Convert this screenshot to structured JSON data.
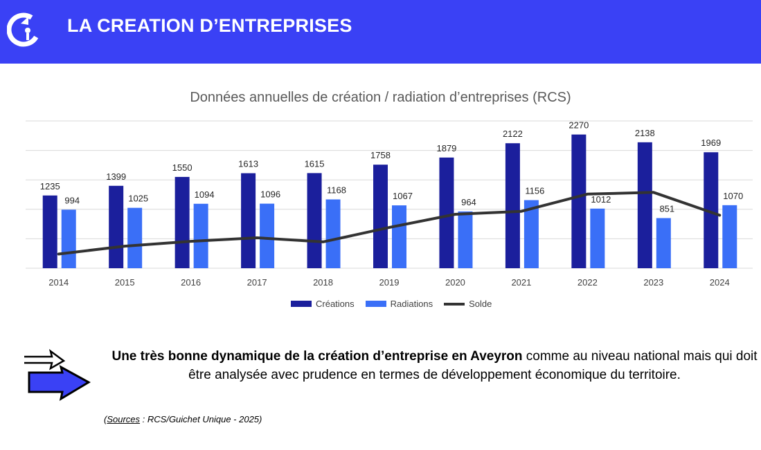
{
  "header": {
    "title": "LA CREATION D’ENTREPRISES",
    "logo_icon": "cci-logo-icon"
  },
  "colors": {
    "header_bg": "#3a41f5",
    "creations": "#1b1f9c",
    "radiations": "#3a6ff7",
    "solde": "#333333"
  },
  "chart_data": {
    "type": "bar",
    "title": "Données annuelles de création / radiation d’entreprises (RCS)",
    "categories": [
      "2014",
      "2015",
      "2016",
      "2017",
      "2018",
      "2019",
      "2020",
      "2021",
      "2022",
      "2023",
      "2024"
    ],
    "series": [
      {
        "name": "Créations",
        "type": "bar",
        "values": [
          1235,
          1399,
          1550,
          1613,
          1615,
          1758,
          1879,
          2122,
          2270,
          2138,
          1969
        ]
      },
      {
        "name": "Radiations",
        "type": "bar",
        "values": [
          994,
          1025,
          1094,
          1096,
          1168,
          1067,
          964,
          1156,
          1012,
          851,
          1070
        ]
      },
      {
        "name": "Solde",
        "type": "line",
        "values": [
          241,
          374,
          456,
          517,
          447,
          691,
          915,
          966,
          1258,
          1287,
          899
        ]
      }
    ],
    "ylim": [
      0,
      2500
    ],
    "grid": true,
    "legend_position": "bottom"
  },
  "legend": {
    "creations": "Créations",
    "radiations": "Radiations",
    "solde": "Solde"
  },
  "message": {
    "bold": "Une très bonne dynamique de la création d’entreprise en Aveyron",
    "rest": " comme au niveau national mais qui doit être analysée avec prudence en termes de développement économique du territoire."
  },
  "source": {
    "label": "Sources",
    "text": " : RCS/Guichet Unique - 2025)",
    "open": "("
  }
}
